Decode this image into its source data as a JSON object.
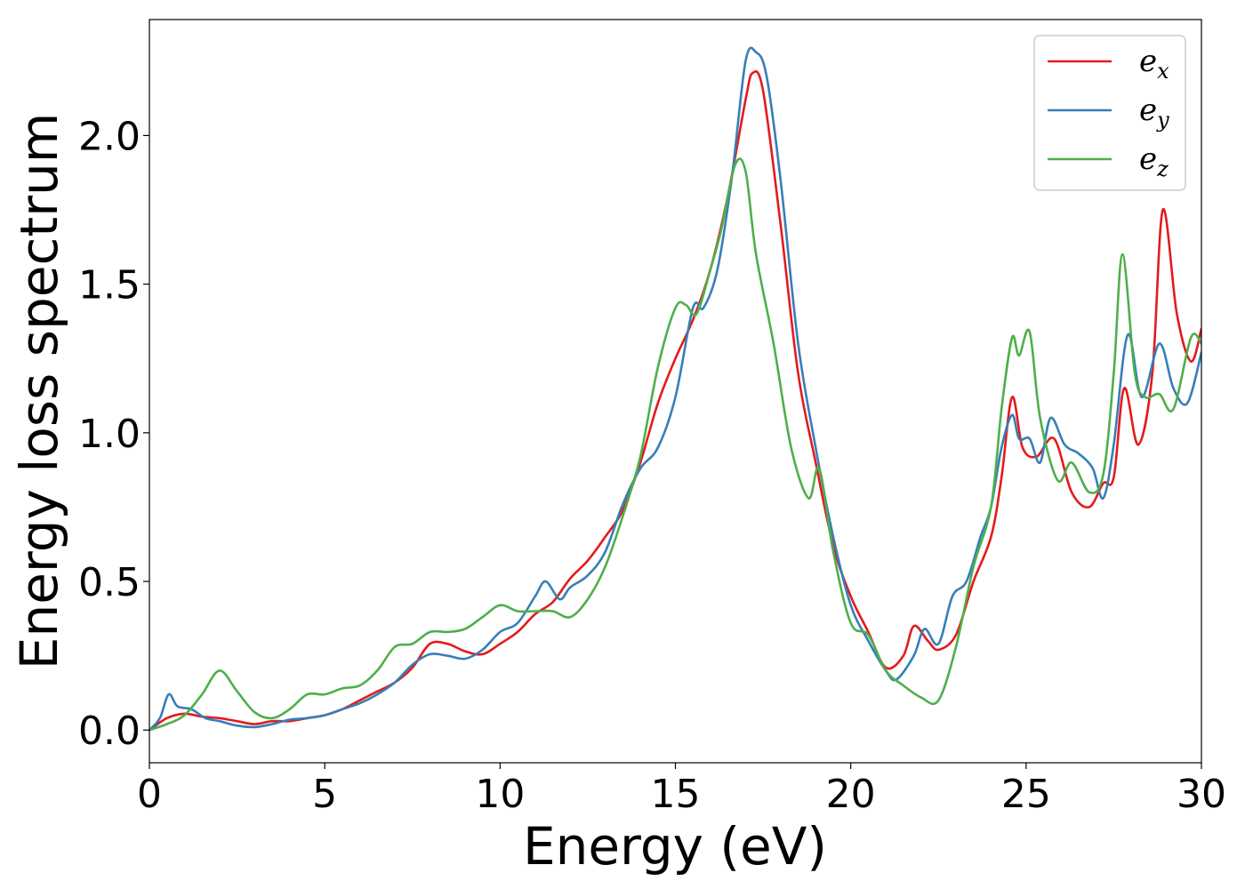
{
  "chart_data": {
    "type": "line",
    "title": "",
    "xlabel": "Energy (eV)",
    "ylabel": "Energy loss spectrum",
    "xlim": [
      0,
      30
    ],
    "ylim": [
      -0.11,
      2.39
    ],
    "xticks": [
      0,
      5,
      10,
      15,
      20,
      25,
      30
    ],
    "xtick_labels": [
      "0",
      "5",
      "10",
      "15",
      "20",
      "25",
      "30"
    ],
    "yticks": [
      0.0,
      0.5,
      1.0,
      1.5,
      2.0
    ],
    "ytick_labels": [
      "0.0",
      "0.5",
      "1.0",
      "1.5",
      "2.0"
    ],
    "grid": false,
    "legend_position": "top-right",
    "series": [
      {
        "name": "e_x",
        "legend_base": "e",
        "legend_sub": "x",
        "color": "#e41a1c",
        "points": [
          [
            0,
            0.0
          ],
          [
            0.5,
            0.04
          ],
          [
            1,
            0.055
          ],
          [
            1.5,
            0.045
          ],
          [
            2,
            0.04
          ],
          [
            2.5,
            0.03
          ],
          [
            3,
            0.02
          ],
          [
            3.5,
            0.03
          ],
          [
            4,
            0.03
          ],
          [
            4.5,
            0.04
          ],
          [
            5,
            0.05
          ],
          [
            5.5,
            0.07
          ],
          [
            6,
            0.1
          ],
          [
            6.5,
            0.13
          ],
          [
            7,
            0.16
          ],
          [
            7.5,
            0.21
          ],
          [
            8,
            0.29
          ],
          [
            8.5,
            0.29
          ],
          [
            9,
            0.265
          ],
          [
            9.5,
            0.255
          ],
          [
            10,
            0.29
          ],
          [
            10.5,
            0.33
          ],
          [
            11,
            0.39
          ],
          [
            11.5,
            0.43
          ],
          [
            12,
            0.51
          ],
          [
            12.5,
            0.57
          ],
          [
            13,
            0.65
          ],
          [
            13.5,
            0.74
          ],
          [
            14,
            0.9
          ],
          [
            14.5,
            1.1
          ],
          [
            15,
            1.25
          ],
          [
            15.5,
            1.38
          ],
          [
            16,
            1.55
          ],
          [
            16.5,
            1.8
          ],
          [
            17,
            2.12
          ],
          [
            17.2,
            2.21
          ],
          [
            17.5,
            2.15
          ],
          [
            18,
            1.7
          ],
          [
            18.5,
            1.2
          ],
          [
            19,
            0.9
          ],
          [
            19.5,
            0.62
          ],
          [
            20,
            0.45
          ],
          [
            20.5,
            0.33
          ],
          [
            21,
            0.21
          ],
          [
            21.5,
            0.25
          ],
          [
            21.8,
            0.35
          ],
          [
            22.2,
            0.3
          ],
          [
            22.5,
            0.27
          ],
          [
            23,
            0.32
          ],
          [
            23.5,
            0.5
          ],
          [
            24,
            0.65
          ],
          [
            24.3,
            0.85
          ],
          [
            24.6,
            1.12
          ],
          [
            24.9,
            0.95
          ],
          [
            25.3,
            0.92
          ],
          [
            25.8,
            0.98
          ],
          [
            26.3,
            0.8
          ],
          [
            26.8,
            0.75
          ],
          [
            27.2,
            0.83
          ],
          [
            27.5,
            0.85
          ],
          [
            27.8,
            1.15
          ],
          [
            28.2,
            0.96
          ],
          [
            28.6,
            1.2
          ],
          [
            28.9,
            1.75
          ],
          [
            29.3,
            1.4
          ],
          [
            29.7,
            1.24
          ],
          [
            30,
            1.35
          ]
        ]
      },
      {
        "name": "e_y",
        "legend_base": "e",
        "legend_sub": "y",
        "color": "#377eb8",
        "points": [
          [
            0,
            0.0
          ],
          [
            0.3,
            0.04
          ],
          [
            0.55,
            0.12
          ],
          [
            0.8,
            0.08
          ],
          [
            1.2,
            0.07
          ],
          [
            1.6,
            0.04
          ],
          [
            2,
            0.03
          ],
          [
            2.5,
            0.015
          ],
          [
            3,
            0.01
          ],
          [
            3.5,
            0.02
          ],
          [
            4,
            0.035
          ],
          [
            4.5,
            0.04
          ],
          [
            5,
            0.05
          ],
          [
            5.5,
            0.07
          ],
          [
            6,
            0.09
          ],
          [
            6.5,
            0.12
          ],
          [
            7,
            0.16
          ],
          [
            7.5,
            0.22
          ],
          [
            8,
            0.255
          ],
          [
            8.5,
            0.25
          ],
          [
            9,
            0.24
          ],
          [
            9.5,
            0.27
          ],
          [
            10,
            0.33
          ],
          [
            10.5,
            0.36
          ],
          [
            11,
            0.45
          ],
          [
            11.3,
            0.5
          ],
          [
            11.7,
            0.44
          ],
          [
            12,
            0.48
          ],
          [
            12.5,
            0.52
          ],
          [
            13,
            0.6
          ],
          [
            13.5,
            0.76
          ],
          [
            14,
            0.88
          ],
          [
            14.5,
            0.95
          ],
          [
            15,
            1.12
          ],
          [
            15.5,
            1.42
          ],
          [
            15.8,
            1.42
          ],
          [
            16.2,
            1.55
          ],
          [
            16.6,
            1.85
          ],
          [
            17,
            2.25
          ],
          [
            17.3,
            2.28
          ],
          [
            17.6,
            2.2
          ],
          [
            18,
            1.85
          ],
          [
            18.5,
            1.3
          ],
          [
            19,
            0.95
          ],
          [
            19.5,
            0.65
          ],
          [
            20,
            0.42
          ],
          [
            20.5,
            0.3
          ],
          [
            21,
            0.2
          ],
          [
            21.3,
            0.17
          ],
          [
            21.8,
            0.25
          ],
          [
            22.1,
            0.34
          ],
          [
            22.5,
            0.29
          ],
          [
            22.9,
            0.45
          ],
          [
            23.3,
            0.5
          ],
          [
            23.7,
            0.65
          ],
          [
            24,
            0.75
          ],
          [
            24.3,
            0.95
          ],
          [
            24.6,
            1.06
          ],
          [
            24.8,
            0.98
          ],
          [
            25.1,
            0.98
          ],
          [
            25.4,
            0.9
          ],
          [
            25.7,
            1.05
          ],
          [
            26.1,
            0.96
          ],
          [
            26.5,
            0.93
          ],
          [
            26.9,
            0.88
          ],
          [
            27.2,
            0.78
          ],
          [
            27.5,
            0.96
          ],
          [
            27.9,
            1.33
          ],
          [
            28.3,
            1.12
          ],
          [
            28.8,
            1.3
          ],
          [
            29.2,
            1.15
          ],
          [
            29.6,
            1.1
          ],
          [
            30,
            1.27
          ]
        ]
      },
      {
        "name": "e_z",
        "legend_base": "e",
        "legend_sub": "z",
        "color": "#4daf4a",
        "points": [
          [
            0,
            0.0
          ],
          [
            0.5,
            0.02
          ],
          [
            1,
            0.05
          ],
          [
            1.5,
            0.12
          ],
          [
            2,
            0.2
          ],
          [
            2.5,
            0.13
          ],
          [
            3,
            0.06
          ],
          [
            3.5,
            0.04
          ],
          [
            4,
            0.07
          ],
          [
            4.5,
            0.12
          ],
          [
            5,
            0.12
          ],
          [
            5.5,
            0.14
          ],
          [
            6,
            0.15
          ],
          [
            6.5,
            0.2
          ],
          [
            7,
            0.28
          ],
          [
            7.5,
            0.29
          ],
          [
            8,
            0.33
          ],
          [
            8.5,
            0.33
          ],
          [
            9,
            0.34
          ],
          [
            9.5,
            0.38
          ],
          [
            10,
            0.42
          ],
          [
            10.5,
            0.4
          ],
          [
            11,
            0.4
          ],
          [
            11.5,
            0.4
          ],
          [
            12,
            0.38
          ],
          [
            12.5,
            0.44
          ],
          [
            13,
            0.55
          ],
          [
            13.5,
            0.72
          ],
          [
            14,
            0.92
          ],
          [
            14.5,
            1.22
          ],
          [
            15,
            1.42
          ],
          [
            15.3,
            1.43
          ],
          [
            15.6,
            1.4
          ],
          [
            16,
            1.55
          ],
          [
            16.3,
            1.68
          ],
          [
            16.7,
            1.9
          ],
          [
            17,
            1.88
          ],
          [
            17.3,
            1.6
          ],
          [
            17.8,
            1.3
          ],
          [
            18.3,
            0.95
          ],
          [
            18.8,
            0.78
          ],
          [
            19.1,
            0.88
          ],
          [
            19.5,
            0.6
          ],
          [
            20,
            0.36
          ],
          [
            20.5,
            0.32
          ],
          [
            21,
            0.2
          ],
          [
            21.5,
            0.15
          ],
          [
            22,
            0.11
          ],
          [
            22.5,
            0.1
          ],
          [
            23,
            0.28
          ],
          [
            23.5,
            0.55
          ],
          [
            24,
            0.75
          ],
          [
            24.3,
            1.08
          ],
          [
            24.6,
            1.32
          ],
          [
            24.8,
            1.26
          ],
          [
            25.1,
            1.34
          ],
          [
            25.4,
            1.05
          ],
          [
            25.9,
            0.84
          ],
          [
            26.3,
            0.9
          ],
          [
            26.8,
            0.8
          ],
          [
            27.2,
            0.86
          ],
          [
            27.5,
            1.2
          ],
          [
            27.75,
            1.6
          ],
          [
            28.1,
            1.2
          ],
          [
            28.4,
            1.12
          ],
          [
            28.8,
            1.13
          ],
          [
            29.2,
            1.08
          ],
          [
            29.7,
            1.32
          ],
          [
            30,
            1.3
          ]
        ]
      }
    ]
  }
}
